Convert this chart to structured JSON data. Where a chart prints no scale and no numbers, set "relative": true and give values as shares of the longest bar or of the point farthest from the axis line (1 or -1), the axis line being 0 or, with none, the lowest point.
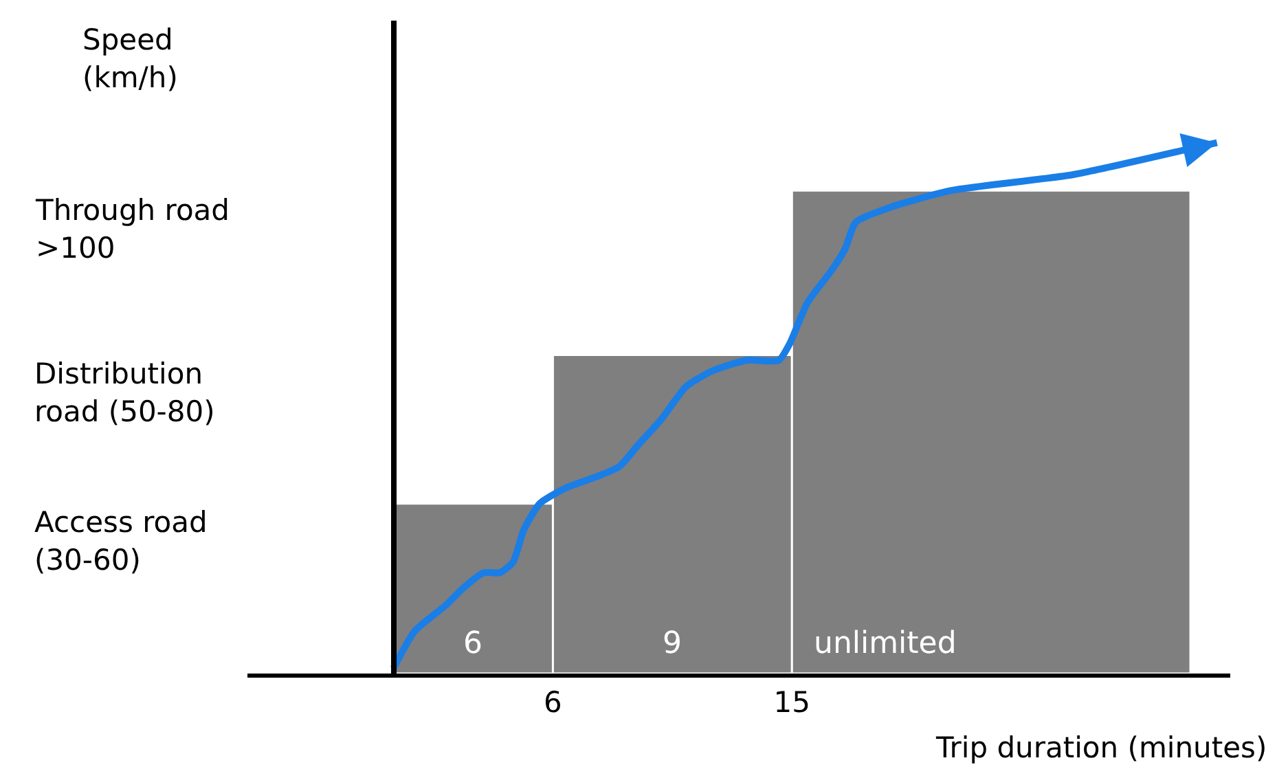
{
  "chart_data": {
    "type": "histogram",
    "relative": true,
    "xlabel": "Trip duration (minutes)",
    "ylabel": "Speed (km/h)",
    "annotations": [
      "Access road (30-60)",
      "Distribution road (50-80)",
      "Through road >100",
      "6",
      "9",
      "unlimited"
    ],
    "bins": [
      0,
      6,
      15,
      30
    ],
    "xlim": [
      -5.5,
      31.5
    ],
    "xticks": [
      6,
      15
    ],
    "grid": false,
    "marker": "none",
    "series": [
      {
        "type": "histogram",
        "color": "#7f7f7f",
        "values": [
          0.32,
          0.6,
          0.91
        ]
      },
      {
        "type": "line",
        "color": "#1a7ee6",
        "x": [
          0,
          0.8,
          2,
          2.6,
          3.4,
          4,
          4.5,
          4.9,
          5.5,
          6.5,
          7.6,
          8.5,
          9.2,
          10.1,
          11,
          12,
          13.3,
          14.5,
          14.9,
          15.6,
          16.5,
          17,
          17.4,
          18.8,
          21,
          25.6,
          30.1,
          31
        ],
        "values": [
          0.01,
          0.08,
          0.13,
          0.16,
          0.19,
          0.19,
          0.21,
          0.27,
          0.32,
          0.35,
          0.37,
          0.39,
          0.43,
          0.48,
          0.54,
          0.57,
          0.59,
          0.59,
          0.62,
          0.7,
          0.76,
          0.8,
          0.85,
          0.88,
          0.91,
          0.94,
          0.99,
          1.0
        ]
      }
    ]
  }
}
